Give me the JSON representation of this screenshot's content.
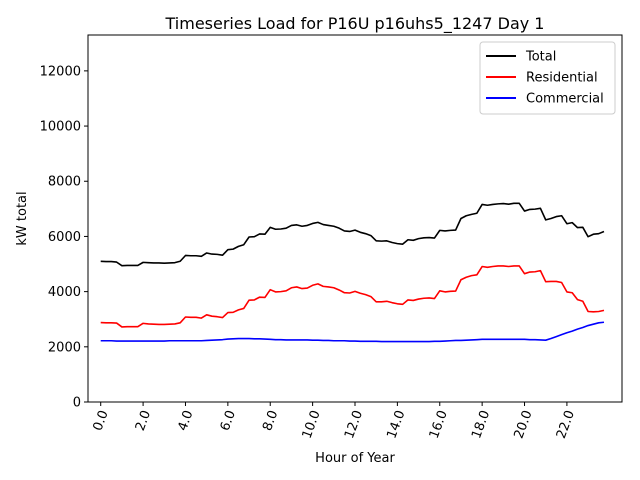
{
  "chart_data": {
    "type": "line",
    "title": "Timeseries Load for P16U p16uhs5_1247  Day 1",
    "xlabel": "Hour of Year",
    "ylabel": "kW total",
    "xlim": [
      -0.6,
      24.6
    ],
    "ylim": [
      0,
      13300
    ],
    "x_ticks": [
      0,
      2,
      4,
      6,
      8,
      10,
      12,
      14,
      16,
      18,
      20,
      22
    ],
    "x_tick_labels": [
      "0.0",
      "2.0",
      "4.0",
      "6.0",
      "8.0",
      "10.0",
      "12.0",
      "14.0",
      "16.0",
      "18.0",
      "20.0",
      "22.0"
    ],
    "y_ticks": [
      0,
      2000,
      4000,
      6000,
      8000,
      10000,
      12000
    ],
    "y_tick_labels": [
      "0",
      "2000",
      "4000",
      "6000",
      "8000",
      "10000",
      "12000"
    ],
    "legend_position": "top-right",
    "series": [
      {
        "name": "Total",
        "color": "#000000",
        "x": [
          0,
          0.25,
          0.5,
          0.75,
          1,
          1.25,
          1.5,
          1.75,
          2,
          2.25,
          2.5,
          2.75,
          3,
          3.25,
          3.5,
          3.75,
          4,
          4.25,
          4.5,
          4.75,
          5,
          5.25,
          5.5,
          5.75,
          6,
          6.25,
          6.5,
          6.75,
          7,
          7.25,
          7.5,
          7.75,
          8,
          8.25,
          8.5,
          8.75,
          9,
          9.25,
          9.5,
          9.75,
          10,
          10.25,
          10.5,
          10.75,
          11,
          11.25,
          11.5,
          11.75,
          12,
          12.25,
          12.5,
          12.75,
          13,
          13.25,
          13.5,
          13.75,
          14,
          14.25,
          14.5,
          14.75,
          15,
          15.25,
          15.5,
          15.75,
          16,
          16.25,
          16.5,
          16.75,
          17,
          17.25,
          17.5,
          17.75,
          18,
          18.25,
          18.5,
          18.75,
          19,
          19.25,
          19.5,
          19.75,
          20,
          20.25,
          20.5,
          20.75,
          21,
          21.25,
          21.5,
          21.75,
          22,
          22.25,
          22.5,
          22.75,
          23,
          23.25,
          23.5,
          23.75
        ],
        "values": [
          5100,
          5090,
          5090,
          5070,
          4940,
          4950,
          4950,
          4950,
          5060,
          5050,
          5040,
          5040,
          5030,
          5040,
          5050,
          5100,
          5310,
          5300,
          5300,
          5280,
          5400,
          5360,
          5350,
          5320,
          5520,
          5540,
          5640,
          5700,
          5980,
          5990,
          6090,
          6080,
          6330,
          6260,
          6270,
          6300,
          6400,
          6420,
          6370,
          6400,
          6470,
          6510,
          6430,
          6400,
          6370,
          6300,
          6200,
          6180,
          6230,
          6150,
          6100,
          6030,
          5840,
          5830,
          5840,
          5780,
          5740,
          5720,
          5880,
          5860,
          5920,
          5950,
          5960,
          5940,
          6220,
          6200,
          6220,
          6230,
          6650,
          6750,
          6800,
          6840,
          7160,
          7130,
          7160,
          7180,
          7190,
          7170,
          7200,
          7200,
          6920,
          6980,
          6990,
          7020,
          6600,
          6650,
          6720,
          6750,
          6460,
          6500,
          6320,
          6330,
          5990,
          6080,
          6100,
          6180
        ]
      },
      {
        "name": "Residential",
        "color": "#ff0000",
        "x": [
          0,
          0.25,
          0.5,
          0.75,
          1,
          1.25,
          1.5,
          1.75,
          2,
          2.25,
          2.5,
          2.75,
          3,
          3.25,
          3.5,
          3.75,
          4,
          4.25,
          4.5,
          4.75,
          5,
          5.25,
          5.5,
          5.75,
          6,
          6.25,
          6.5,
          6.75,
          7,
          7.25,
          7.5,
          7.75,
          8,
          8.25,
          8.5,
          8.75,
          9,
          9.25,
          9.5,
          9.75,
          10,
          10.25,
          10.5,
          10.75,
          11,
          11.25,
          11.5,
          11.75,
          12,
          12.25,
          12.5,
          12.75,
          13,
          13.25,
          13.5,
          13.75,
          14,
          14.25,
          14.5,
          14.75,
          15,
          15.25,
          15.5,
          15.75,
          16,
          16.25,
          16.5,
          16.75,
          17,
          17.25,
          17.5,
          17.75,
          18,
          18.25,
          18.5,
          18.75,
          19,
          19.25,
          19.5,
          19.75,
          20,
          20.25,
          20.5,
          20.75,
          21,
          21.25,
          21.5,
          21.75,
          22,
          22.25,
          22.5,
          22.75,
          23,
          23.25,
          23.5,
          23.75
        ],
        "values": [
          2880,
          2870,
          2870,
          2860,
          2720,
          2730,
          2730,
          2730,
          2850,
          2830,
          2820,
          2810,
          2810,
          2820,
          2830,
          2870,
          3080,
          3070,
          3070,
          3040,
          3160,
          3110,
          3090,
          3060,
          3240,
          3250,
          3340,
          3390,
          3690,
          3700,
          3800,
          3790,
          4070,
          3990,
          4000,
          4030,
          4140,
          4170,
          4110,
          4130,
          4230,
          4280,
          4190,
          4170,
          4140,
          4060,
          3960,
          3950,
          4010,
          3940,
          3890,
          3820,
          3630,
          3630,
          3650,
          3600,
          3560,
          3540,
          3700,
          3680,
          3730,
          3760,
          3770,
          3750,
          4030,
          3990,
          4010,
          4020,
          4430,
          4520,
          4580,
          4610,
          4910,
          4880,
          4910,
          4930,
          4930,
          4910,
          4930,
          4930,
          4650,
          4710,
          4720,
          4760,
          4360,
          4370,
          4370,
          4330,
          3990,
          3960,
          3710,
          3650,
          3280,
          3270,
          3280,
          3320
        ]
      },
      {
        "name": "Commercial",
        "color": "#0000ff",
        "x": [
          0,
          0.25,
          0.5,
          0.75,
          1,
          1.25,
          1.5,
          1.75,
          2,
          2.25,
          2.5,
          2.75,
          3,
          3.25,
          3.5,
          3.75,
          4,
          4.25,
          4.5,
          4.75,
          5,
          5.25,
          5.5,
          5.75,
          6,
          6.25,
          6.5,
          6.75,
          7,
          7.25,
          7.5,
          7.75,
          8,
          8.25,
          8.5,
          8.75,
          9,
          9.25,
          9.5,
          9.75,
          10,
          10.25,
          10.5,
          10.75,
          11,
          11.25,
          11.5,
          11.75,
          12,
          12.25,
          12.5,
          12.75,
          13,
          13.25,
          13.5,
          13.75,
          14,
          14.25,
          14.5,
          14.75,
          15,
          15.25,
          15.5,
          15.75,
          16,
          16.25,
          16.5,
          16.75,
          17,
          17.25,
          17.5,
          17.75,
          18,
          18.25,
          18.5,
          18.75,
          19,
          19.25,
          19.5,
          19.75,
          20,
          20.25,
          20.5,
          20.75,
          21,
          21.25,
          21.5,
          21.75,
          22,
          22.25,
          22.5,
          22.75,
          23,
          23.25,
          23.5,
          23.75
        ],
        "values": [
          2220,
          2220,
          2220,
          2210,
          2210,
          2210,
          2210,
          2210,
          2210,
          2210,
          2210,
          2210,
          2210,
          2220,
          2220,
          2220,
          2220,
          2220,
          2220,
          2220,
          2230,
          2240,
          2250,
          2260,
          2280,
          2290,
          2300,
          2300,
          2300,
          2290,
          2290,
          2280,
          2270,
          2260,
          2260,
          2250,
          2250,
          2250,
          2250,
          2250,
          2240,
          2240,
          2230,
          2230,
          2220,
          2220,
          2220,
          2210,
          2210,
          2200,
          2200,
          2200,
          2200,
          2190,
          2190,
          2190,
          2190,
          2190,
          2190,
          2190,
          2190,
          2190,
          2190,
          2200,
          2200,
          2210,
          2220,
          2230,
          2230,
          2240,
          2250,
          2260,
          2270,
          2270,
          2270,
          2270,
          2270,
          2270,
          2270,
          2270,
          2270,
          2260,
          2260,
          2250,
          2240,
          2300,
          2370,
          2440,
          2510,
          2570,
          2640,
          2700,
          2770,
          2820,
          2870,
          2890
        ]
      }
    ]
  }
}
